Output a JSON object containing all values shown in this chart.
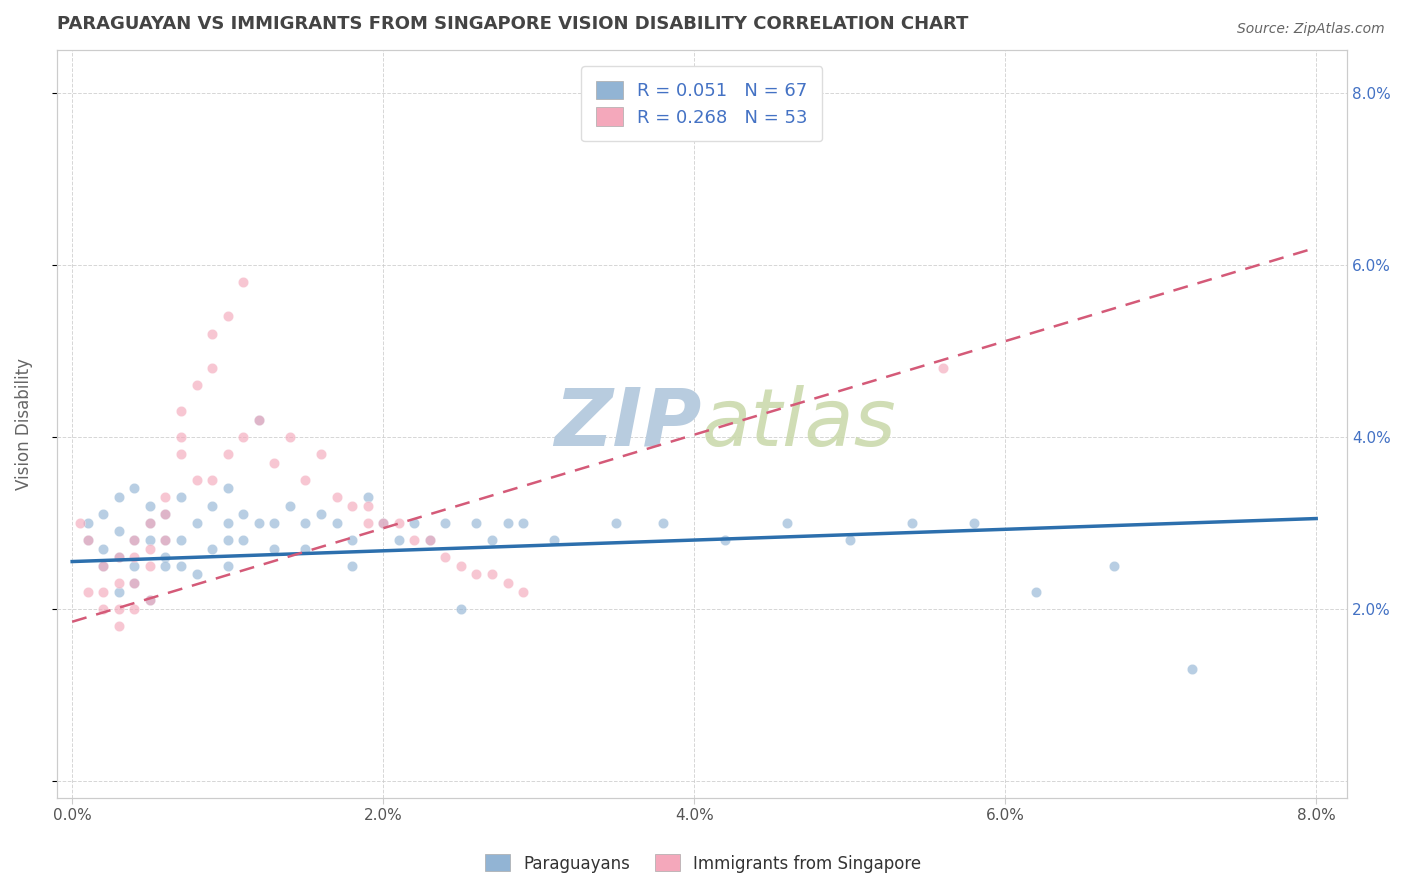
{
  "title": "PARAGUAYAN VS IMMIGRANTS FROM SINGAPORE VISION DISABILITY CORRELATION CHART",
  "source": "Source: ZipAtlas.com",
  "ylabel": "Vision Disability",
  "legend_r1": "R = 0.051",
  "legend_n1": "N = 67",
  "legend_r2": "R = 0.268",
  "legend_n2": "N = 53",
  "blue_color": "#92b4d4",
  "pink_color": "#f4a8bb",
  "blue_line_color": "#2c6fad",
  "pink_line_color": "#d45a78",
  "watermark_color": "#d0dff0",
  "title_color": "#444444",
  "axis_label_color": "#666666",
  "legend_text_color": "#4472c4",
  "grid_color": "#cccccc",
  "paraguayans_x": [
    0.001,
    0.001,
    0.002,
    0.002,
    0.002,
    0.003,
    0.003,
    0.003,
    0.003,
    0.004,
    0.004,
    0.004,
    0.004,
    0.005,
    0.005,
    0.005,
    0.005,
    0.006,
    0.006,
    0.006,
    0.006,
    0.007,
    0.007,
    0.007,
    0.008,
    0.008,
    0.009,
    0.009,
    0.01,
    0.01,
    0.01,
    0.01,
    0.011,
    0.011,
    0.012,
    0.012,
    0.013,
    0.013,
    0.014,
    0.015,
    0.015,
    0.016,
    0.017,
    0.018,
    0.018,
    0.019,
    0.02,
    0.021,
    0.022,
    0.023,
    0.024,
    0.025,
    0.026,
    0.027,
    0.028,
    0.029,
    0.031,
    0.035,
    0.038,
    0.042,
    0.046,
    0.05,
    0.054,
    0.058,
    0.062,
    0.067,
    0.072
  ],
  "paraguayans_y": [
    0.03,
    0.028,
    0.031,
    0.025,
    0.027,
    0.033,
    0.029,
    0.026,
    0.022,
    0.034,
    0.028,
    0.025,
    0.023,
    0.032,
    0.03,
    0.028,
    0.021,
    0.031,
    0.028,
    0.026,
    0.025,
    0.033,
    0.028,
    0.025,
    0.03,
    0.024,
    0.032,
    0.027,
    0.034,
    0.03,
    0.028,
    0.025,
    0.028,
    0.031,
    0.042,
    0.03,
    0.03,
    0.027,
    0.032,
    0.03,
    0.027,
    0.031,
    0.03,
    0.028,
    0.025,
    0.033,
    0.03,
    0.028,
    0.03,
    0.028,
    0.03,
    0.02,
    0.03,
    0.028,
    0.03,
    0.03,
    0.028,
    0.03,
    0.03,
    0.028,
    0.03,
    0.028,
    0.03,
    0.03,
    0.022,
    0.025,
    0.013
  ],
  "singapore_x": [
    0.0005,
    0.001,
    0.001,
    0.002,
    0.002,
    0.002,
    0.003,
    0.003,
    0.003,
    0.003,
    0.004,
    0.004,
    0.004,
    0.004,
    0.005,
    0.005,
    0.005,
    0.005,
    0.006,
    0.006,
    0.006,
    0.007,
    0.007,
    0.007,
    0.008,
    0.008,
    0.009,
    0.009,
    0.009,
    0.01,
    0.01,
    0.011,
    0.011,
    0.012,
    0.013,
    0.014,
    0.015,
    0.016,
    0.017,
    0.018,
    0.019,
    0.019,
    0.02,
    0.021,
    0.022,
    0.023,
    0.024,
    0.025,
    0.026,
    0.027,
    0.028,
    0.029,
    0.056
  ],
  "singapore_y": [
    0.03,
    0.028,
    0.022,
    0.025,
    0.022,
    0.02,
    0.026,
    0.023,
    0.02,
    0.018,
    0.028,
    0.026,
    0.023,
    0.02,
    0.03,
    0.027,
    0.025,
    0.021,
    0.033,
    0.031,
    0.028,
    0.038,
    0.04,
    0.043,
    0.035,
    0.046,
    0.048,
    0.035,
    0.052,
    0.054,
    0.038,
    0.058,
    0.04,
    0.042,
    0.037,
    0.04,
    0.035,
    0.038,
    0.033,
    0.032,
    0.03,
    0.032,
    0.03,
    0.03,
    0.028,
    0.028,
    0.026,
    0.025,
    0.024,
    0.024,
    0.023,
    0.022,
    0.048
  ],
  "blue_trend_x": [
    0.0,
    0.08
  ],
  "blue_trend_y": [
    0.0255,
    0.0305
  ],
  "pink_trend_x": [
    0.0,
    0.08
  ],
  "pink_trend_y": [
    0.0185,
    0.062
  ],
  "xlim": [
    -0.001,
    0.082
  ],
  "ylim": [
    -0.002,
    0.085
  ],
  "scatter_size": 55,
  "scatter_alpha": 0.65,
  "background_color": "#ffffff",
  "plot_bg_color": "#ffffff",
  "legend_bg": "#ffffff",
  "legend_box_color": "#dddddd"
}
